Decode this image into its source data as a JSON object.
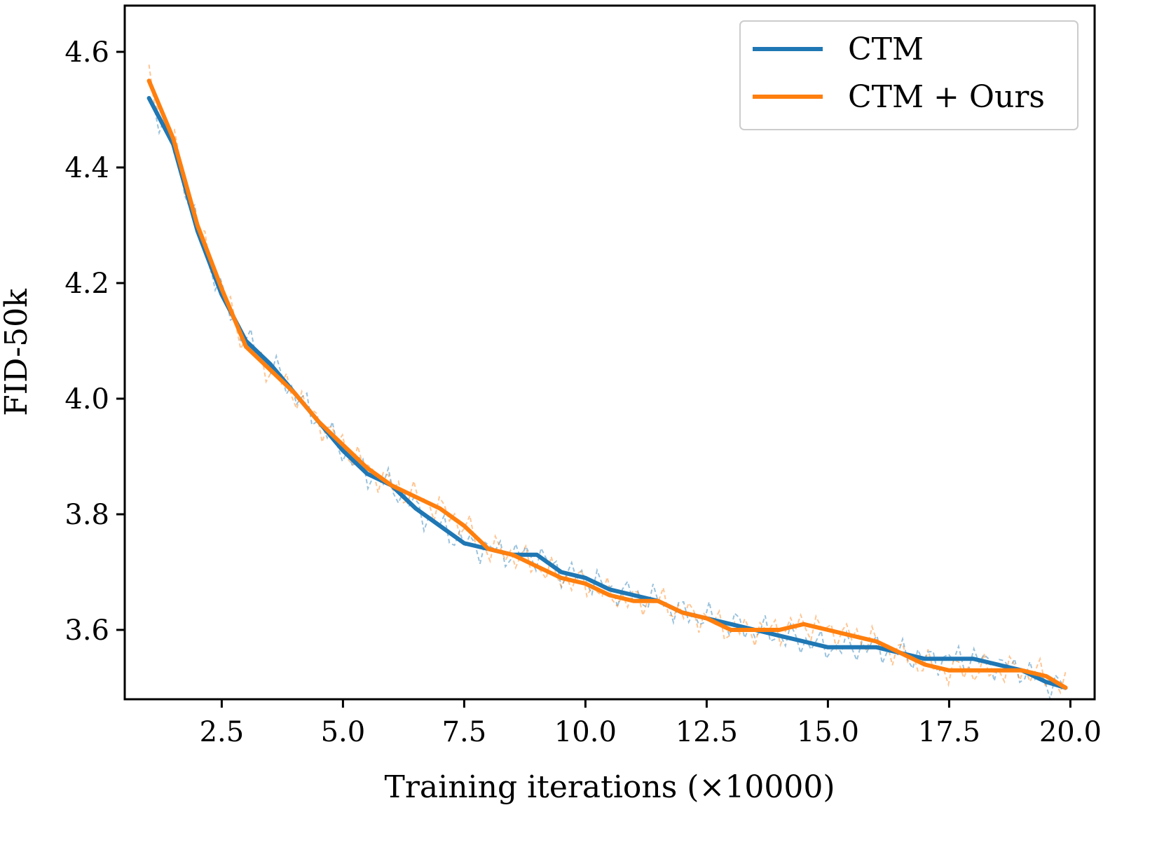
{
  "chart_data": {
    "type": "line",
    "xlabel": "Training iterations (×10000)",
    "ylabel": "FID-50k",
    "xlim": [
      0.5,
      20.5
    ],
    "ylim": [
      3.48,
      4.68
    ],
    "xticks": [
      2.5,
      5.0,
      7.5,
      10.0,
      12.5,
      15.0,
      17.5,
      20.0
    ],
    "xtick_labels": [
      "2.5",
      "5.0",
      "7.5",
      "10.0",
      "12.5",
      "15.0",
      "17.5",
      "20.0"
    ],
    "yticks": [
      3.6,
      3.8,
      4.0,
      4.2,
      4.4,
      4.6
    ],
    "ytick_labels": [
      "3.6",
      "3.8",
      "4.0",
      "4.2",
      "4.4",
      "4.6"
    ],
    "grid": false,
    "legend": {
      "position": "top-right",
      "entries": [
        "CTM",
        "CTM + Ours"
      ]
    },
    "series": [
      {
        "name": "CTM",
        "color": "#1f77b4",
        "style": "solid",
        "x": [
          1.0,
          1.5,
          2.0,
          2.5,
          3.0,
          3.5,
          4.0,
          4.5,
          5.0,
          5.5,
          6.0,
          6.5,
          7.0,
          7.5,
          8.0,
          8.5,
          9.0,
          9.5,
          10.0,
          10.5,
          11.0,
          11.5,
          12.0,
          12.5,
          13.0,
          13.5,
          14.0,
          14.5,
          15.0,
          15.5,
          16.0,
          16.5,
          17.0,
          17.5,
          18.0,
          18.5,
          19.0,
          19.5,
          19.9
        ],
        "y": [
          4.52,
          4.44,
          4.29,
          4.18,
          4.1,
          4.06,
          4.01,
          3.96,
          3.91,
          3.87,
          3.85,
          3.81,
          3.78,
          3.75,
          3.74,
          3.73,
          3.73,
          3.7,
          3.69,
          3.67,
          3.66,
          3.65,
          3.63,
          3.62,
          3.61,
          3.6,
          3.59,
          3.58,
          3.57,
          3.57,
          3.57,
          3.56,
          3.55,
          3.55,
          3.55,
          3.54,
          3.53,
          3.51,
          3.5
        ]
      },
      {
        "name": "CTM + Ours",
        "color": "#ff7f0e",
        "style": "solid",
        "x": [
          1.0,
          1.5,
          2.0,
          2.5,
          3.0,
          3.5,
          4.0,
          4.5,
          5.0,
          5.5,
          6.0,
          6.5,
          7.0,
          7.5,
          8.0,
          8.5,
          9.0,
          9.5,
          10.0,
          10.5,
          11.0,
          11.5,
          12.0,
          12.5,
          13.0,
          13.5,
          14.0,
          14.5,
          15.0,
          15.5,
          16.0,
          16.5,
          17.0,
          17.5,
          18.0,
          18.5,
          19.0,
          19.5,
          19.9
        ],
        "y": [
          4.55,
          4.45,
          4.3,
          4.19,
          4.09,
          4.05,
          4.01,
          3.96,
          3.92,
          3.88,
          3.85,
          3.83,
          3.81,
          3.78,
          3.74,
          3.73,
          3.71,
          3.69,
          3.68,
          3.66,
          3.65,
          3.65,
          3.63,
          3.62,
          3.6,
          3.6,
          3.6,
          3.61,
          3.6,
          3.59,
          3.58,
          3.56,
          3.54,
          3.53,
          3.53,
          3.53,
          3.53,
          3.52,
          3.5
        ]
      }
    ]
  }
}
